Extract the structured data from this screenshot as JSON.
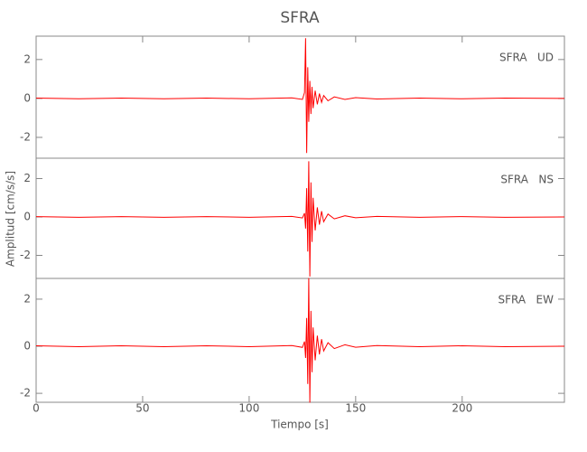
{
  "chart_data": {
    "type": "line",
    "title": "SFRA",
    "xlabel": "Tiempo [s]",
    "ylabel": "Amplitud [cm/s/s]",
    "x": [
      0,
      20,
      40,
      60,
      80,
      100,
      120,
      125,
      126,
      126.5,
      127,
      127.5,
      128,
      128.5,
      129,
      129.5,
      130,
      131,
      132,
      133,
      134,
      135,
      137,
      140,
      145,
      150,
      160,
      180,
      200,
      220,
      248
    ],
    "xlim": [
      0,
      248
    ],
    "xticks": [
      0,
      50,
      100,
      150,
      200
    ],
    "panels": [
      {
        "label": "SFRA   UD",
        "color": "#ff0000",
        "ylim": [
          -3.07,
          3.2
        ],
        "yticks": [
          -2,
          0,
          2
        ],
        "values": [
          0.02,
          -0.02,
          0.02,
          -0.02,
          0.02,
          -0.02,
          0.03,
          -0.05,
          0.3,
          3.1,
          -2.8,
          1.6,
          -1.2,
          0.9,
          -0.8,
          0.6,
          -0.5,
          0.4,
          -0.3,
          0.25,
          -0.2,
          0.15,
          -0.12,
          0.08,
          -0.05,
          0.04,
          -0.03,
          0.02,
          -0.02,
          0.02,
          0
        ]
      },
      {
        "label": "SFRA   NS",
        "color": "#ff0000",
        "ylim": [
          -3.2,
          3.06
        ],
        "yticks": [
          -2,
          0,
          2
        ],
        "values": [
          0.02,
          -0.02,
          0.02,
          -0.02,
          0.02,
          -0.02,
          0.03,
          -0.05,
          0.2,
          -0.6,
          1.5,
          -1.8,
          2.9,
          -3.1,
          1.8,
          -1.3,
          1.0,
          -0.7,
          0.5,
          -0.4,
          0.3,
          -0.25,
          0.15,
          -0.1,
          0.06,
          -0.04,
          0.03,
          -0.02,
          0.02,
          -0.02,
          0
        ]
      },
      {
        "label": "SFRA   EW",
        "color": "#ff0000",
        "ylim": [
          -2.38,
          2.88
        ],
        "yticks": [
          -2,
          0,
          2
        ],
        "values": [
          0.02,
          -0.02,
          0.02,
          -0.02,
          0.02,
          -0.02,
          0.03,
          -0.05,
          0.2,
          -0.5,
          1.2,
          -1.6,
          2.9,
          -2.4,
          1.5,
          -1.1,
          0.8,
          -0.6,
          0.45,
          -0.35,
          0.3,
          -0.2,
          0.15,
          -0.1,
          0.06,
          -0.04,
          0.03,
          -0.02,
          0.02,
          -0.02,
          0
        ]
      }
    ]
  }
}
